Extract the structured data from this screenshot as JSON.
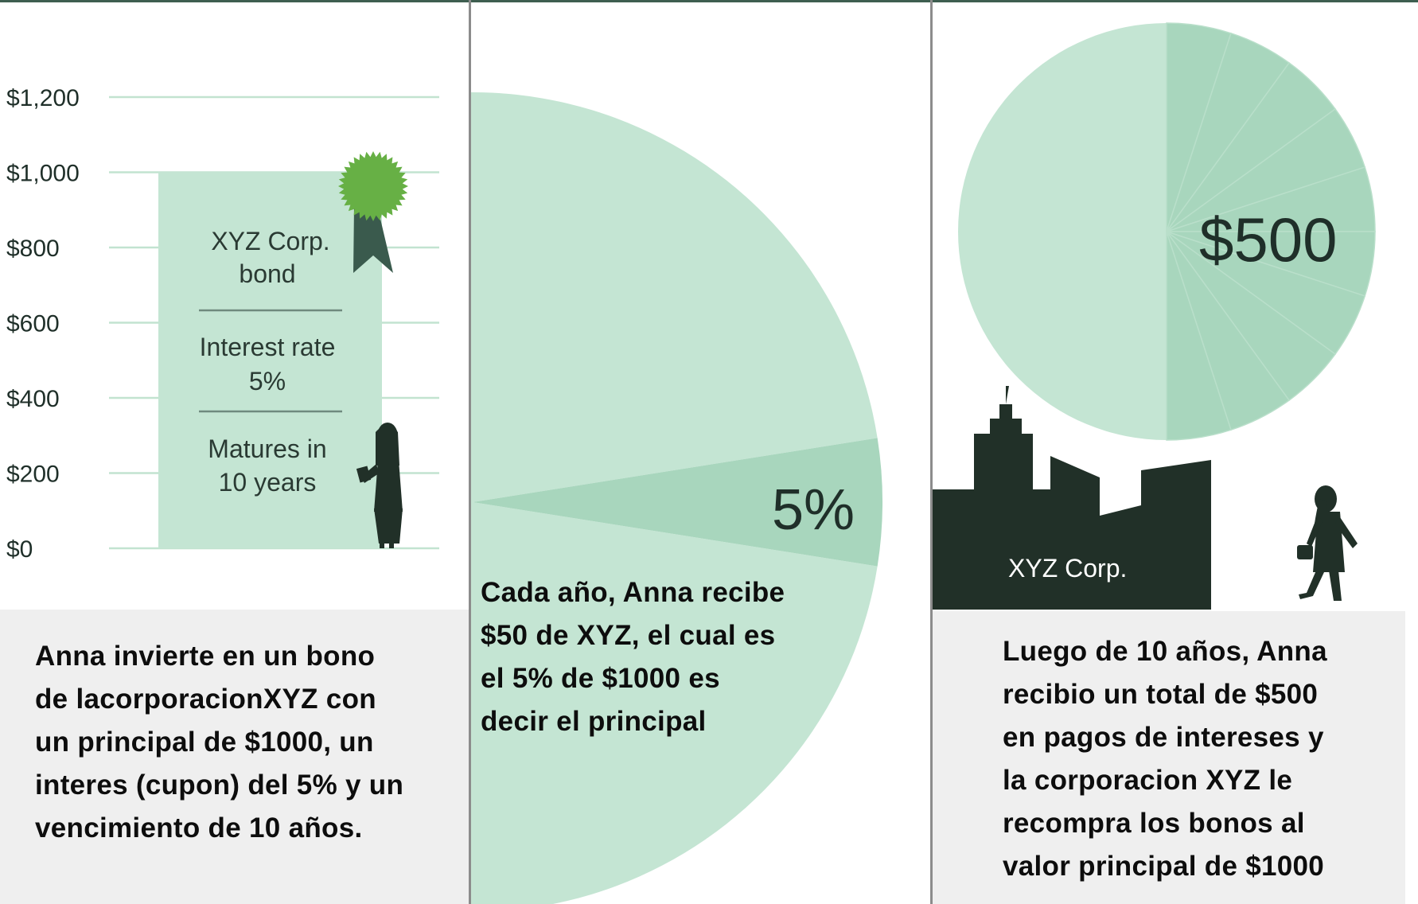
{
  "colors": {
    "light_green": "#c4e5d3",
    "mid_green": "#a8d6bd",
    "dark_silhouette": "#213028",
    "ribbon_dark": "#3a5a4d",
    "seal_green": "#67b045",
    "caption_bg": "#efefef"
  },
  "icons": [
    "award-ribbon-icon",
    "woman-reading-silhouette-icon",
    "woman-walking-silhouette-icon",
    "city-skyline-icon"
  ],
  "panel1": {
    "chart_data": {
      "type": "bar",
      "categories": [
        "XYZ Corp. bond"
      ],
      "values": [
        1000
      ],
      "yticks": [
        "$0",
        "$200",
        "$400",
        "$600",
        "$800",
        "$1,000",
        "$1,200"
      ],
      "ylim": [
        0,
        1200
      ],
      "grid": true
    },
    "bond": {
      "title_line1": "XYZ Corp.",
      "title_line2": "bond",
      "rate_line1": "Interest rate",
      "rate_line2": "5%",
      "maturity_line1": "Matures in",
      "maturity_line2": "10 years"
    },
    "caption_lines": [
      "Anna invierte en un bono",
      "de lacorporacionXYZ con",
      "un principal de $1000, un",
      "interes (cupon) del 5% y un",
      "vencimiento de 10 años."
    ]
  },
  "panel2": {
    "chart_data": {
      "type": "pie",
      "slices": [
        {
          "label": "5%",
          "value": 5
        },
        {
          "label": "",
          "value": 95
        }
      ]
    },
    "caption_lines": [
      "Cada año, Anna recibe",
      "$50 de XYZ, el cual es",
      "el 5% de $1000 es",
      "decir el principal"
    ]
  },
  "panel3": {
    "chart_data": {
      "type": "pie",
      "label": "$500",
      "slices": [
        {
          "label": "$500",
          "value": 50,
          "segments": 10
        },
        {
          "label": "",
          "value": 50
        }
      ]
    },
    "building_label": "XYZ Corp.",
    "caption_lines": [
      "Luego de 10 años, Anna",
      "recibio un total de $500",
      "en pagos de intereses y",
      "la corporacion XYZ le",
      "recompra los bonos al",
      "valor principal de $1000"
    ]
  }
}
